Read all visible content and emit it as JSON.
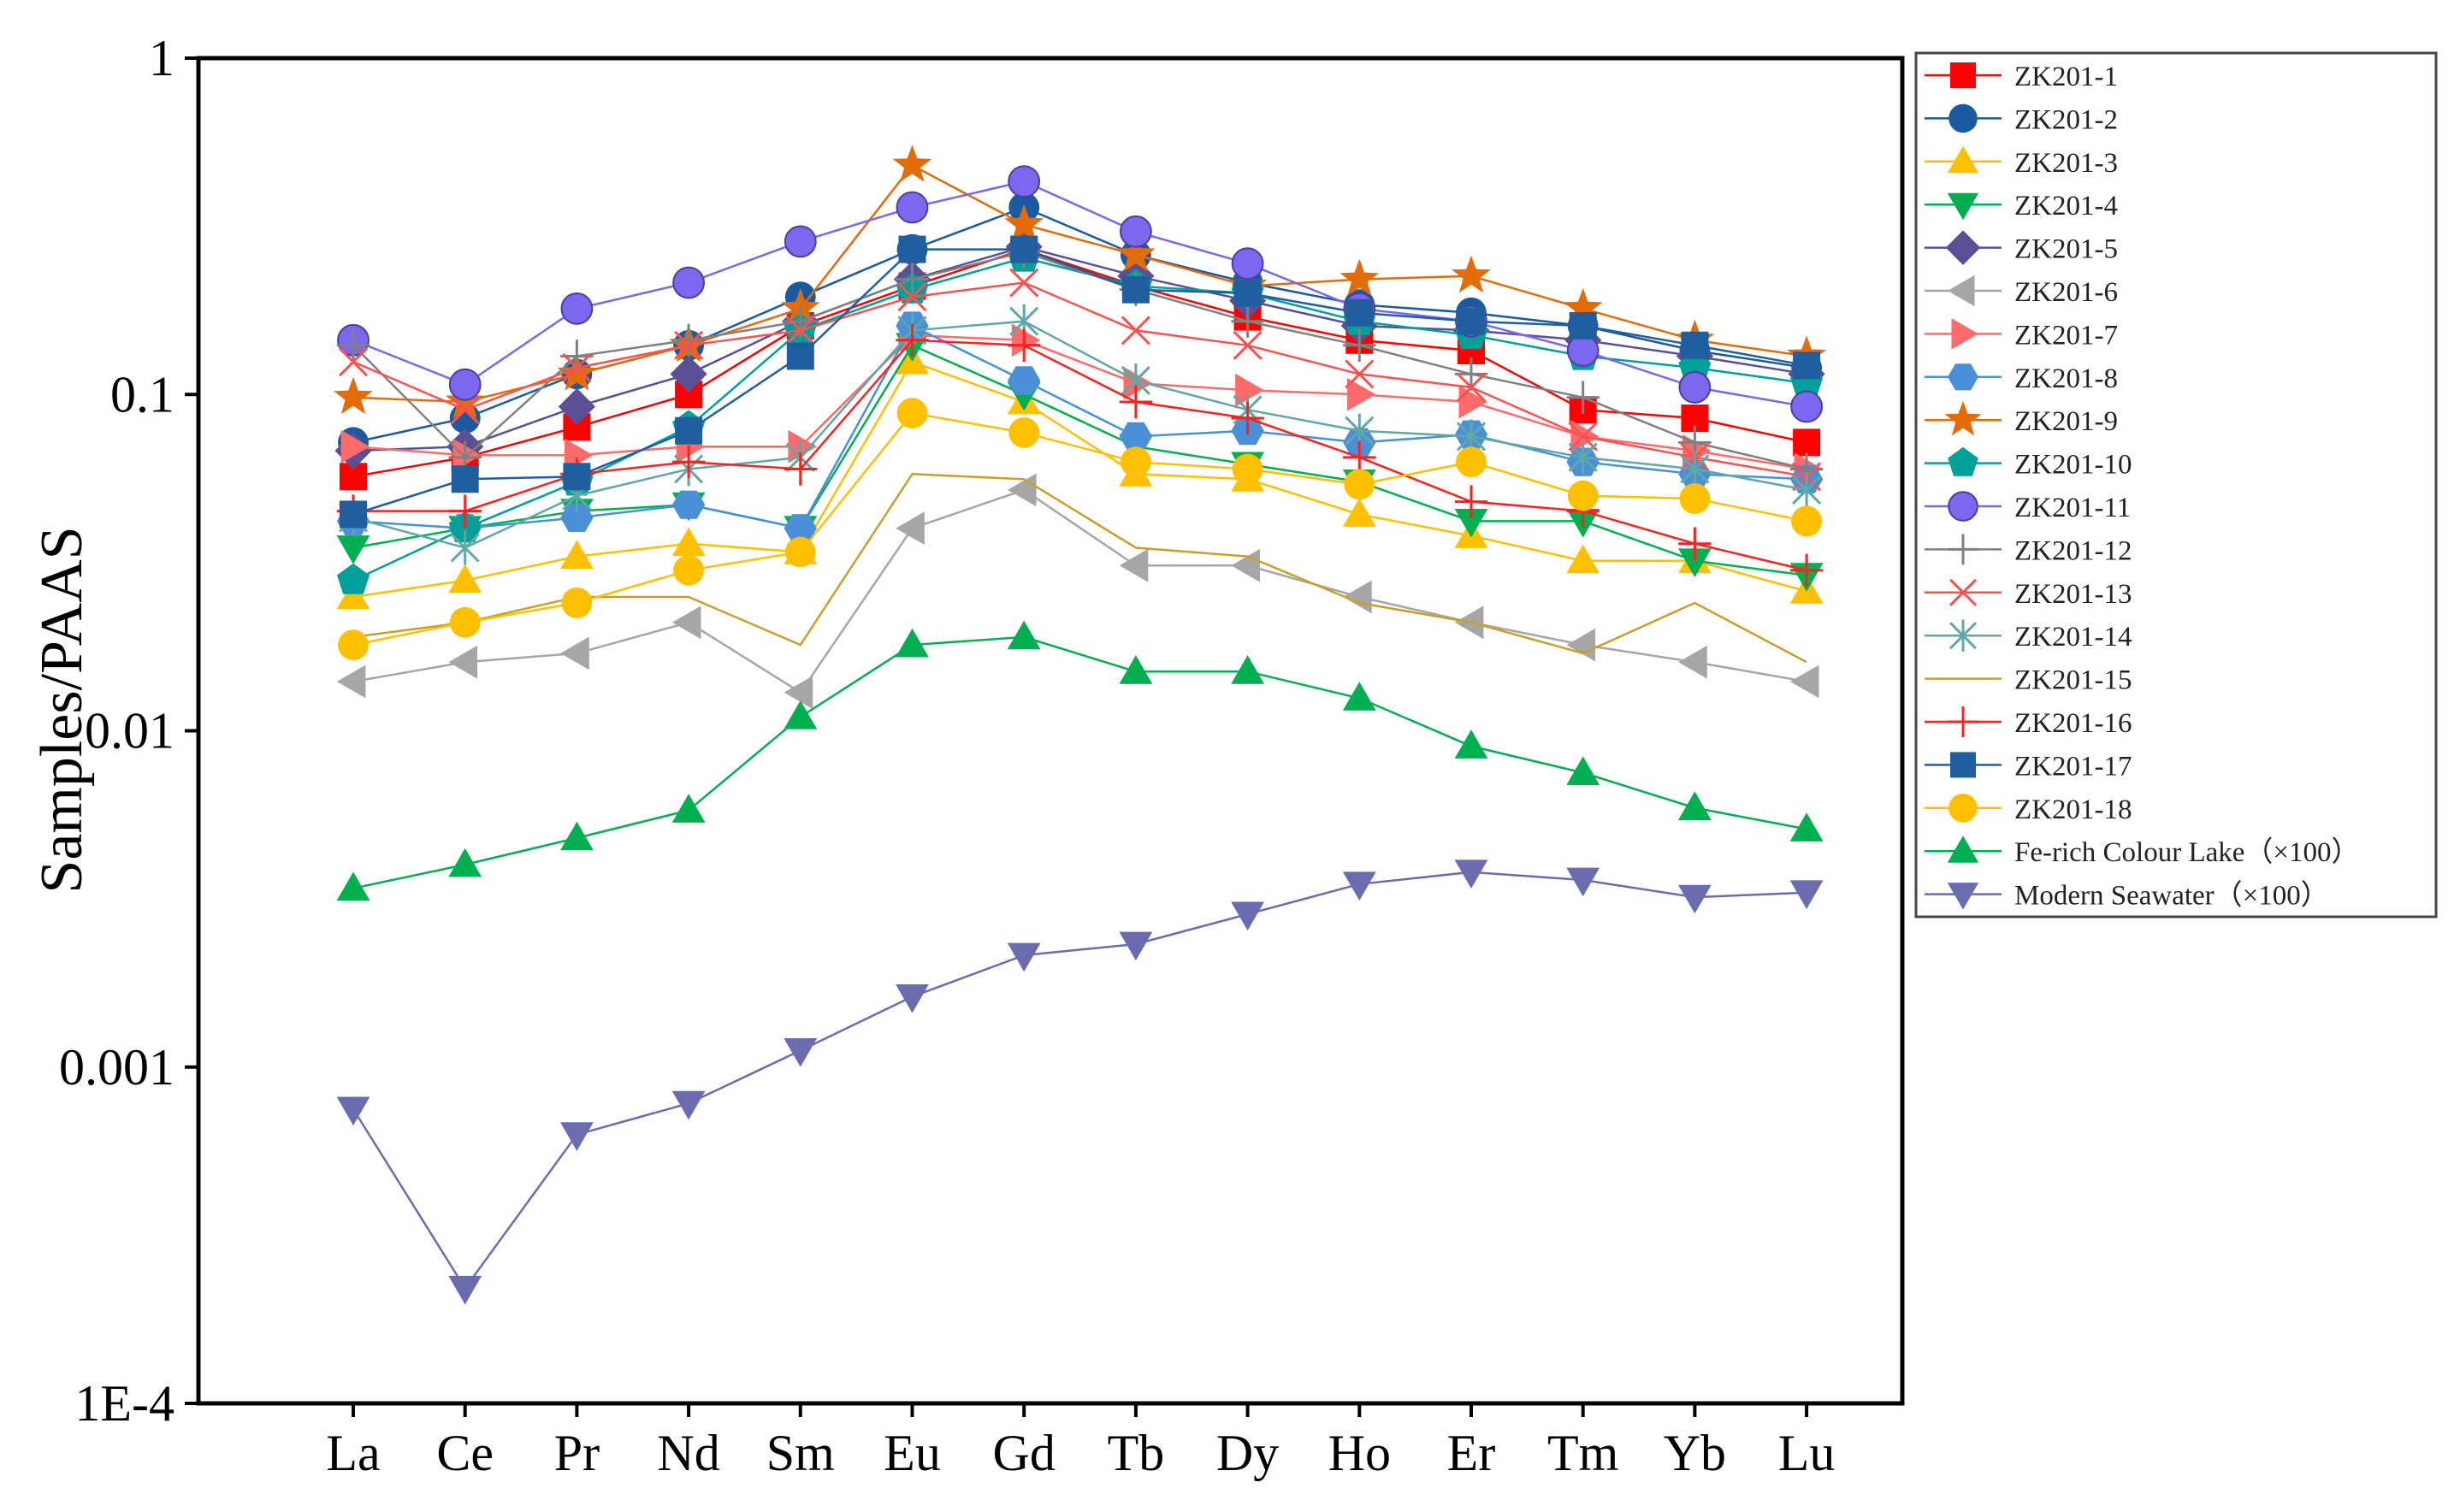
{
  "chart_data": {
    "type": "line",
    "title": "",
    "xlabel": "",
    "ylabel": "Samples/PAAS",
    "yscale": "log",
    "ylim": [
      0.0001,
      1
    ],
    "ytick_values": [
      0.0001,
      0.001,
      0.01,
      0.1,
      1
    ],
    "ytick_labels": [
      "1E-4",
      "0.001",
      "0.01",
      "0.1",
      "1"
    ],
    "categories": [
      "La",
      "Ce",
      "Pr",
      "Nd",
      "Sm",
      "Eu",
      "Gd",
      "Tb",
      "Dy",
      "Ho",
      "Er",
      "Tm",
      "Yb",
      "Lu"
    ],
    "legend_position": "right",
    "series": [
      {
        "name": "ZK201-1",
        "color": "#ff0000",
        "marker": "square",
        "values": [
          0.057,
          0.065,
          0.08,
          0.1,
          0.16,
          0.21,
          0.27,
          0.21,
          0.17,
          0.145,
          0.135,
          0.09,
          0.085,
          0.072
        ]
      },
      {
        "name": "ZK201-2",
        "color": "#1a5aa0",
        "marker": "circle",
        "values": [
          0.072,
          0.085,
          0.115,
          0.14,
          0.195,
          0.27,
          0.36,
          0.26,
          0.215,
          0.185,
          0.175,
          0.16,
          0.135,
          0.12
        ]
      },
      {
        "name": "ZK201-3",
        "color": "#ffc000",
        "marker": "triangle-up",
        "values": [
          0.025,
          0.028,
          0.033,
          0.036,
          0.034,
          0.125,
          0.095,
          0.058,
          0.056,
          0.044,
          0.038,
          0.032,
          0.032,
          0.026
        ]
      },
      {
        "name": "ZK201-4",
        "color": "#00b050",
        "marker": "triangle-down",
        "values": [
          0.035,
          0.04,
          0.045,
          0.047,
          0.04,
          0.14,
          0.1,
          0.07,
          0.062,
          0.055,
          0.042,
          0.042,
          0.032,
          0.029
        ]
      },
      {
        "name": "ZK201-5",
        "color": "#5b4f96",
        "marker": "diamond",
        "values": [
          0.068,
          0.07,
          0.092,
          0.115,
          0.165,
          0.22,
          0.275,
          0.225,
          0.19,
          0.16,
          0.155,
          0.145,
          0.13,
          0.115
        ]
      },
      {
        "name": "ZK201-6",
        "color": "#a6a6a6",
        "marker": "triangle-left",
        "values": [
          0.014,
          0.016,
          0.017,
          0.021,
          0.013,
          0.04,
          0.052,
          0.031,
          0.031,
          0.025,
          0.021,
          0.018,
          0.016,
          0.014
        ]
      },
      {
        "name": "ZK201-7",
        "color": "#ff6b6b",
        "marker": "triangle-right",
        "values": [
          0.07,
          0.066,
          0.066,
          0.07,
          0.07,
          0.15,
          0.145,
          0.108,
          0.103,
          0.1,
          0.095,
          0.075,
          0.068,
          0.06
        ]
      },
      {
        "name": "ZK201-8",
        "color": "#4a90d9",
        "marker": "hexagon",
        "values": [
          0.042,
          0.04,
          0.043,
          0.047,
          0.04,
          0.16,
          0.11,
          0.075,
          0.078,
          0.072,
          0.076,
          0.063,
          0.058,
          0.056
        ]
      },
      {
        "name": "ZK201-9",
        "color": "#e36c09",
        "marker": "star",
        "values": [
          0.098,
          0.095,
          0.115,
          0.14,
          0.18,
          0.48,
          0.32,
          0.26,
          0.21,
          0.22,
          0.225,
          0.18,
          0.145,
          0.13
        ]
      },
      {
        "name": "ZK201-10",
        "color": "#00a09a",
        "marker": "pentagon",
        "values": [
          0.028,
          0.04,
          0.055,
          0.08,
          0.155,
          0.205,
          0.255,
          0.21,
          0.2,
          0.165,
          0.15,
          0.13,
          0.12,
          0.108
        ]
      },
      {
        "name": "ZK201-11",
        "color": "#7b68ee",
        "marker": "circle-shaded",
        "values": [
          0.145,
          0.107,
          0.18,
          0.215,
          0.285,
          0.36,
          0.43,
          0.305,
          0.245,
          0.18,
          0.165,
          0.135,
          0.105,
          0.092
        ]
      },
      {
        "name": "ZK201-12",
        "color": "#808080",
        "marker": "plus",
        "values": [
          0.14,
          0.065,
          0.13,
          0.145,
          0.165,
          0.22,
          0.265,
          0.205,
          0.165,
          0.14,
          0.115,
          0.098,
          0.072,
          0.06
        ]
      },
      {
        "name": "ZK201-13",
        "color": "#ff5050",
        "marker": "x",
        "values": [
          0.125,
          0.09,
          0.12,
          0.14,
          0.155,
          0.195,
          0.215,
          0.155,
          0.14,
          0.115,
          0.105,
          0.075,
          0.065,
          0.057
        ]
      },
      {
        "name": "ZK201-14",
        "color": "#5fa8a6",
        "marker": "asterisk",
        "values": [
          0.043,
          0.035,
          0.05,
          0.06,
          0.065,
          0.155,
          0.165,
          0.11,
          0.09,
          0.078,
          0.075,
          0.065,
          0.06,
          0.052
        ]
      },
      {
        "name": "ZK201-15",
        "color": "#c8a028",
        "marker": "none",
        "values": [
          0.019,
          0.021,
          0.025,
          0.025,
          0.018,
          0.058,
          0.056,
          0.035,
          0.033,
          0.024,
          0.021,
          0.017,
          0.024,
          0.016
        ]
      },
      {
        "name": "ZK201-16",
        "color": "#ff2020",
        "marker": "plus",
        "values": [
          0.045,
          0.045,
          0.058,
          0.063,
          0.06,
          0.145,
          0.14,
          0.095,
          0.085,
          0.065,
          0.048,
          0.045,
          0.036,
          0.03
        ]
      },
      {
        "name": "ZK201-17",
        "color": "#1f5f9f",
        "marker": "square",
        "values": [
          0.044,
          0.056,
          0.057,
          0.078,
          0.13,
          0.27,
          0.27,
          0.205,
          0.2,
          0.175,
          0.165,
          0.16,
          0.14,
          0.122
        ]
      },
      {
        "name": "ZK201-18",
        "color": "#ffc000",
        "marker": "circle",
        "values": [
          0.018,
          0.021,
          0.024,
          0.03,
          0.034,
          0.088,
          0.077,
          0.063,
          0.06,
          0.054,
          0.063,
          0.05,
          0.049,
          0.042
        ]
      },
      {
        "name": "Fe-rich Colour Lake（×100）",
        "color": "#00b050",
        "marker": "triangle-up",
        "values": [
          0.0034,
          0.004,
          0.0048,
          0.0058,
          0.011,
          0.018,
          0.019,
          0.015,
          0.015,
          0.0125,
          0.009,
          0.0075,
          0.0059,
          0.0051
        ]
      },
      {
        "name": "Modern Seawater（×100）",
        "color": "#6b6bb0",
        "marker": "triangle-down",
        "values": [
          0.00075,
          0.00022,
          0.00063,
          0.00078,
          0.00112,
          0.00162,
          0.00215,
          0.00232,
          0.00285,
          0.0035,
          0.0038,
          0.0036,
          0.0032,
          0.0033
        ]
      }
    ]
  }
}
